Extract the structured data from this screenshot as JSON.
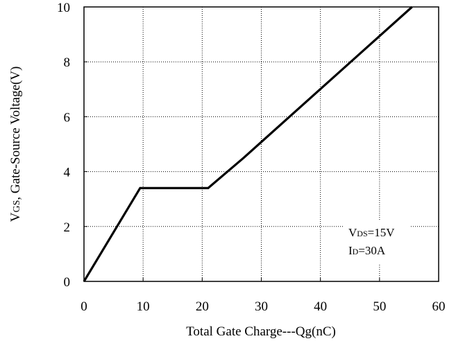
{
  "chart_data": {
    "type": "line",
    "xlabel": "Total Gate Charge---Qg(nC)",
    "ylabel": {
      "main": "V",
      "sub": "GS",
      "rest": ", Gate-Source Voltage(V)"
    },
    "xlim": [
      0,
      60
    ],
    "ylim": [
      0,
      10
    ],
    "xticks": [
      0,
      10,
      20,
      30,
      40,
      50,
      60
    ],
    "yticks": [
      0,
      2,
      4,
      6,
      8,
      10
    ],
    "grid": true,
    "series": [
      {
        "x": [
          0,
          9.5,
          21,
          27,
          55.5
        ],
        "y": [
          0,
          3.4,
          3.4,
          4.5,
          10
        ],
        "color": "#000000"
      }
    ],
    "annotations": [
      {
        "main": "V",
        "sub": "DS",
        "rest": "=15V"
      },
      {
        "main": "I",
        "sub": "D",
        "rest": "=30A"
      }
    ]
  }
}
